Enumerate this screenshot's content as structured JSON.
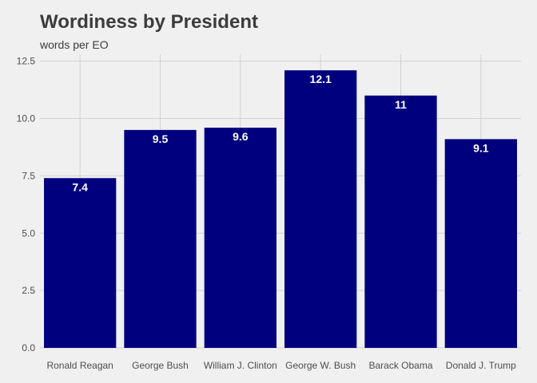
{
  "chart_data": {
    "type": "bar",
    "title": "Wordiness by President",
    "subtitle": "words per EO",
    "xlabel": "",
    "ylabel": "",
    "categories": [
      "Ronald Reagan",
      "George Bush",
      "William J. Clinton",
      "George W. Bush",
      "Barack Obama",
      "Donald J. Trump"
    ],
    "values": [
      7.4,
      9.5,
      9.6,
      12.1,
      11,
      9.1
    ],
    "data_labels": [
      "7.4",
      "9.5",
      "9.6",
      "12.1",
      "11",
      "9.1"
    ],
    "yticks": [
      0,
      2.5,
      5,
      7.5,
      10,
      12.5
    ],
    "ytick_labels": [
      "0.0",
      "2.5",
      "5.0",
      "7.5",
      "10.0",
      "12.5"
    ],
    "ylim": [
      0,
      12.8
    ],
    "grid": true,
    "legend": "none",
    "colors": {
      "bar": "#00007f",
      "background": "#f0f0f0",
      "grid": "#d2d2d2",
      "text": "#3c3c3c"
    }
  }
}
